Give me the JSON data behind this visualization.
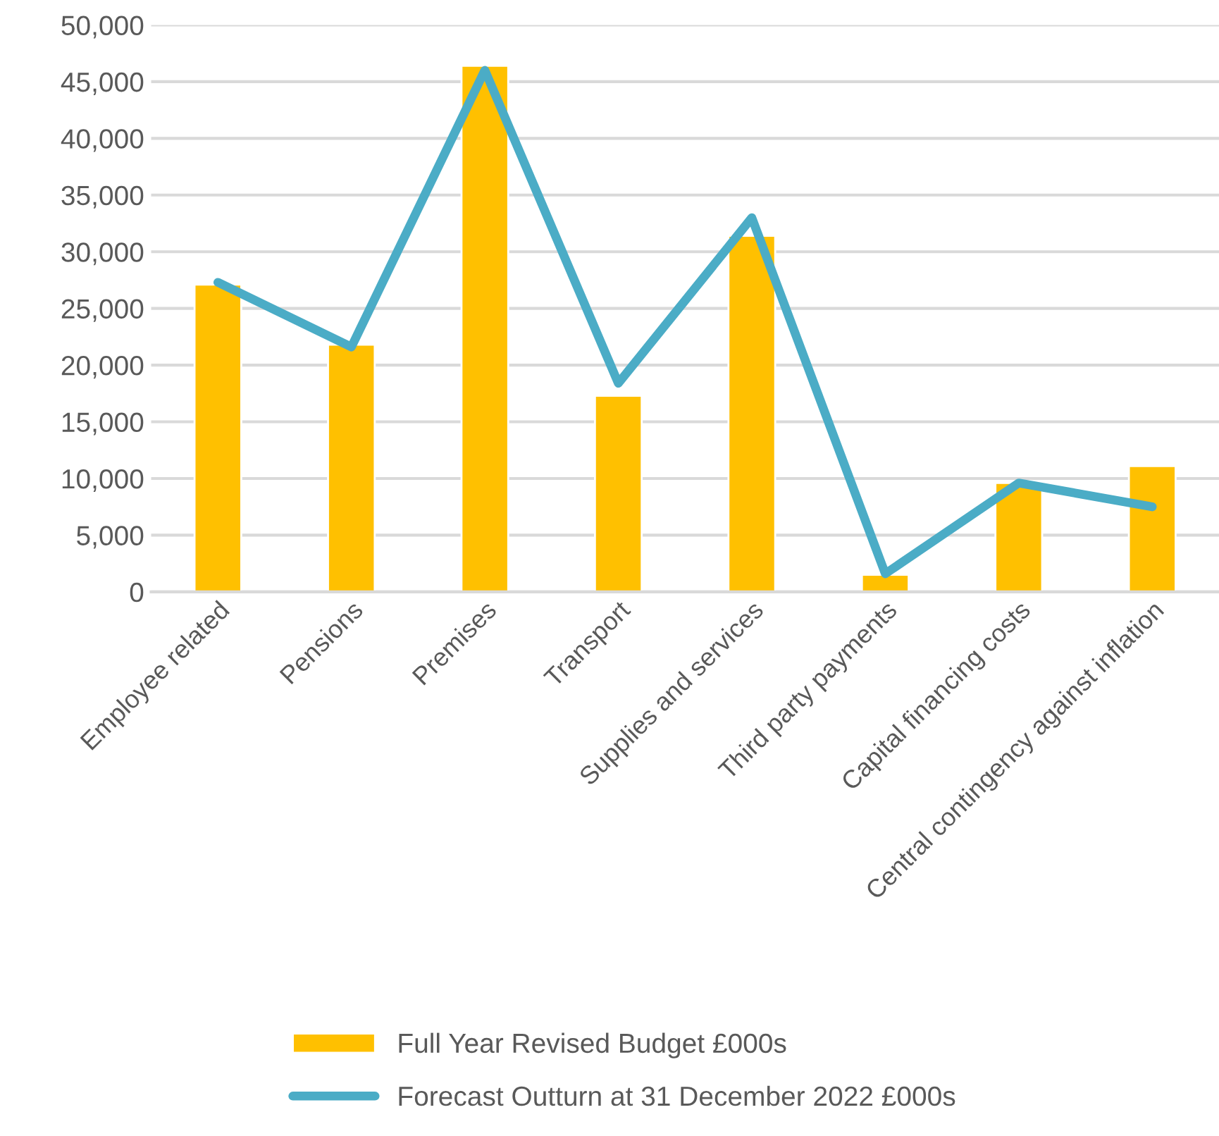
{
  "chart_data": {
    "type": "bar",
    "categories": [
      "Employee related",
      "Pensions",
      "Premises",
      "Transport",
      "Supplies and services",
      "Third party payments",
      "Capital financing costs",
      "Central contingency against inflation"
    ],
    "series": [
      {
        "name": "Full Year Revised Budget £000s",
        "color": "#ffc000",
        "values": [
          27100,
          21800,
          46400,
          17300,
          31400,
          1500,
          9600,
          11100
        ]
      },
      {
        "name": "Forecast Outturn at 31 December 2022 £000s",
        "type": "line",
        "color": "#4bacc6",
        "values": [
          27300,
          21600,
          46000,
          18400,
          33000,
          1600,
          9600,
          7500
        ]
      }
    ],
    "ylim": [
      0,
      50000
    ],
    "yticks": [
      {
        "value": 0,
        "label": "0"
      },
      {
        "value": 5000,
        "label": "5,000"
      },
      {
        "value": 10000,
        "label": "10,000"
      },
      {
        "value": 15000,
        "label": "15,000"
      },
      {
        "value": 20000,
        "label": "20,000"
      },
      {
        "value": 25000,
        "label": "25,000"
      },
      {
        "value": 30000,
        "label": "30,000"
      },
      {
        "value": 35000,
        "label": "35,000"
      },
      {
        "value": 40000,
        "label": "40,000"
      },
      {
        "value": 45000,
        "label": "45,000"
      },
      {
        "value": 50000,
        "label": "50,000"
      }
    ],
    "grid": "y",
    "legend": "bottom",
    "marker": "none",
    "line_style": "solid"
  }
}
